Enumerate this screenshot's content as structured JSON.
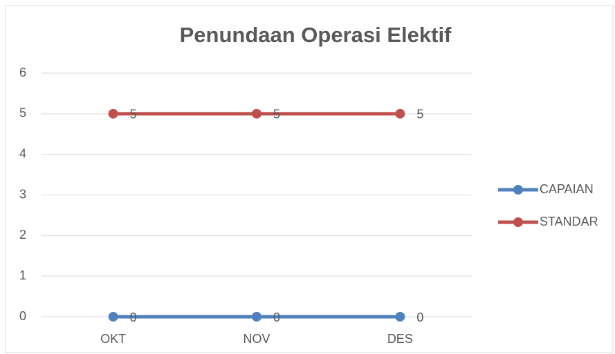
{
  "chart_data": {
    "type": "line",
    "title": "Penundaan Operasi Elektif",
    "categories": [
      "OKT",
      "NOV",
      "DES"
    ],
    "series": [
      {
        "name": "CAPAIAN",
        "color": "#4f81bd",
        "values": [
          0,
          0,
          0
        ]
      },
      {
        "name": "STANDAR",
        "color": "#c0504d",
        "values": [
          5,
          5,
          5
        ]
      }
    ],
    "ylim": [
      0,
      6
    ],
    "yticks": [
      0,
      1,
      2,
      3,
      4,
      5,
      6
    ],
    "grid": true,
    "legend": "right"
  }
}
